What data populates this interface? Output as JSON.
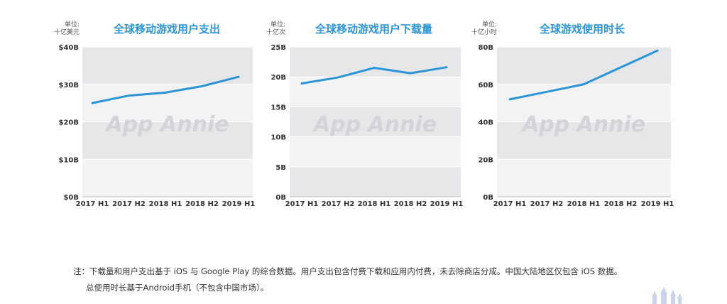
{
  "watermark": "App Annie",
  "colors": {
    "line": "#2b95d6",
    "band_dark": "#e7e7ea",
    "band_light": "#f3f3f4",
    "title": "#2b95d6"
  },
  "chart_data": [
    {
      "type": "line",
      "title": "全球移动游戏用户支出",
      "unit_label_line1": "单位:",
      "unit_label_line2": "十亿美元",
      "categories": [
        "2017 H1",
        "2017 H2",
        "2018 H1",
        "2018 H2",
        "2019 H1"
      ],
      "series": [
        {
          "values": [
            25,
            27,
            27.8,
            29.5,
            32
          ]
        }
      ],
      "yticks": [
        "$0B",
        "$10B",
        "$20B",
        "$30B",
        "$40B"
      ],
      "ylim": [
        0,
        40
      ],
      "grid": true
    },
    {
      "type": "line",
      "title": "全球移动游戏用户下载量",
      "unit_label_line1": "单位:",
      "unit_label_line2": "十亿次",
      "categories": [
        "2017 H1",
        "2017 H2",
        "2018 H1",
        "2018 H2",
        "2019 H1"
      ],
      "series": [
        {
          "values": [
            18.9,
            19.9,
            21.5,
            20.6,
            21.6
          ]
        }
      ],
      "yticks": [
        "0B",
        "5B",
        "10B",
        "15B",
        "20B",
        "25B"
      ],
      "ylim": [
        0,
        25
      ],
      "grid": true
    },
    {
      "type": "line",
      "title": "全球游戏使用时长",
      "unit_label_line1": "单位:",
      "unit_label_line2": "十亿小时",
      "categories": [
        "2017 H1",
        "2017 H2",
        "2018 H1",
        "2018 H2",
        "2019 H1"
      ],
      "series": [
        {
          "values": [
            52,
            56,
            60,
            69,
            78
          ]
        }
      ],
      "yticks": [
        "0B",
        "20B",
        "40B",
        "60B",
        "80B"
      ],
      "ylim": [
        0,
        80
      ],
      "grid": true
    }
  ],
  "footnote": {
    "line1": "注：下载量和用户支出基于 iOS 与 Google Play 的综合数据。用户支出包含付费下载和应用内付费，未去除商店分成。中国大陆地区仅包含 iOS 数据。",
    "line2": "总使用时长基于Android手机（不包含中国市场）。"
  },
  "logo_icon": "castle-icon"
}
